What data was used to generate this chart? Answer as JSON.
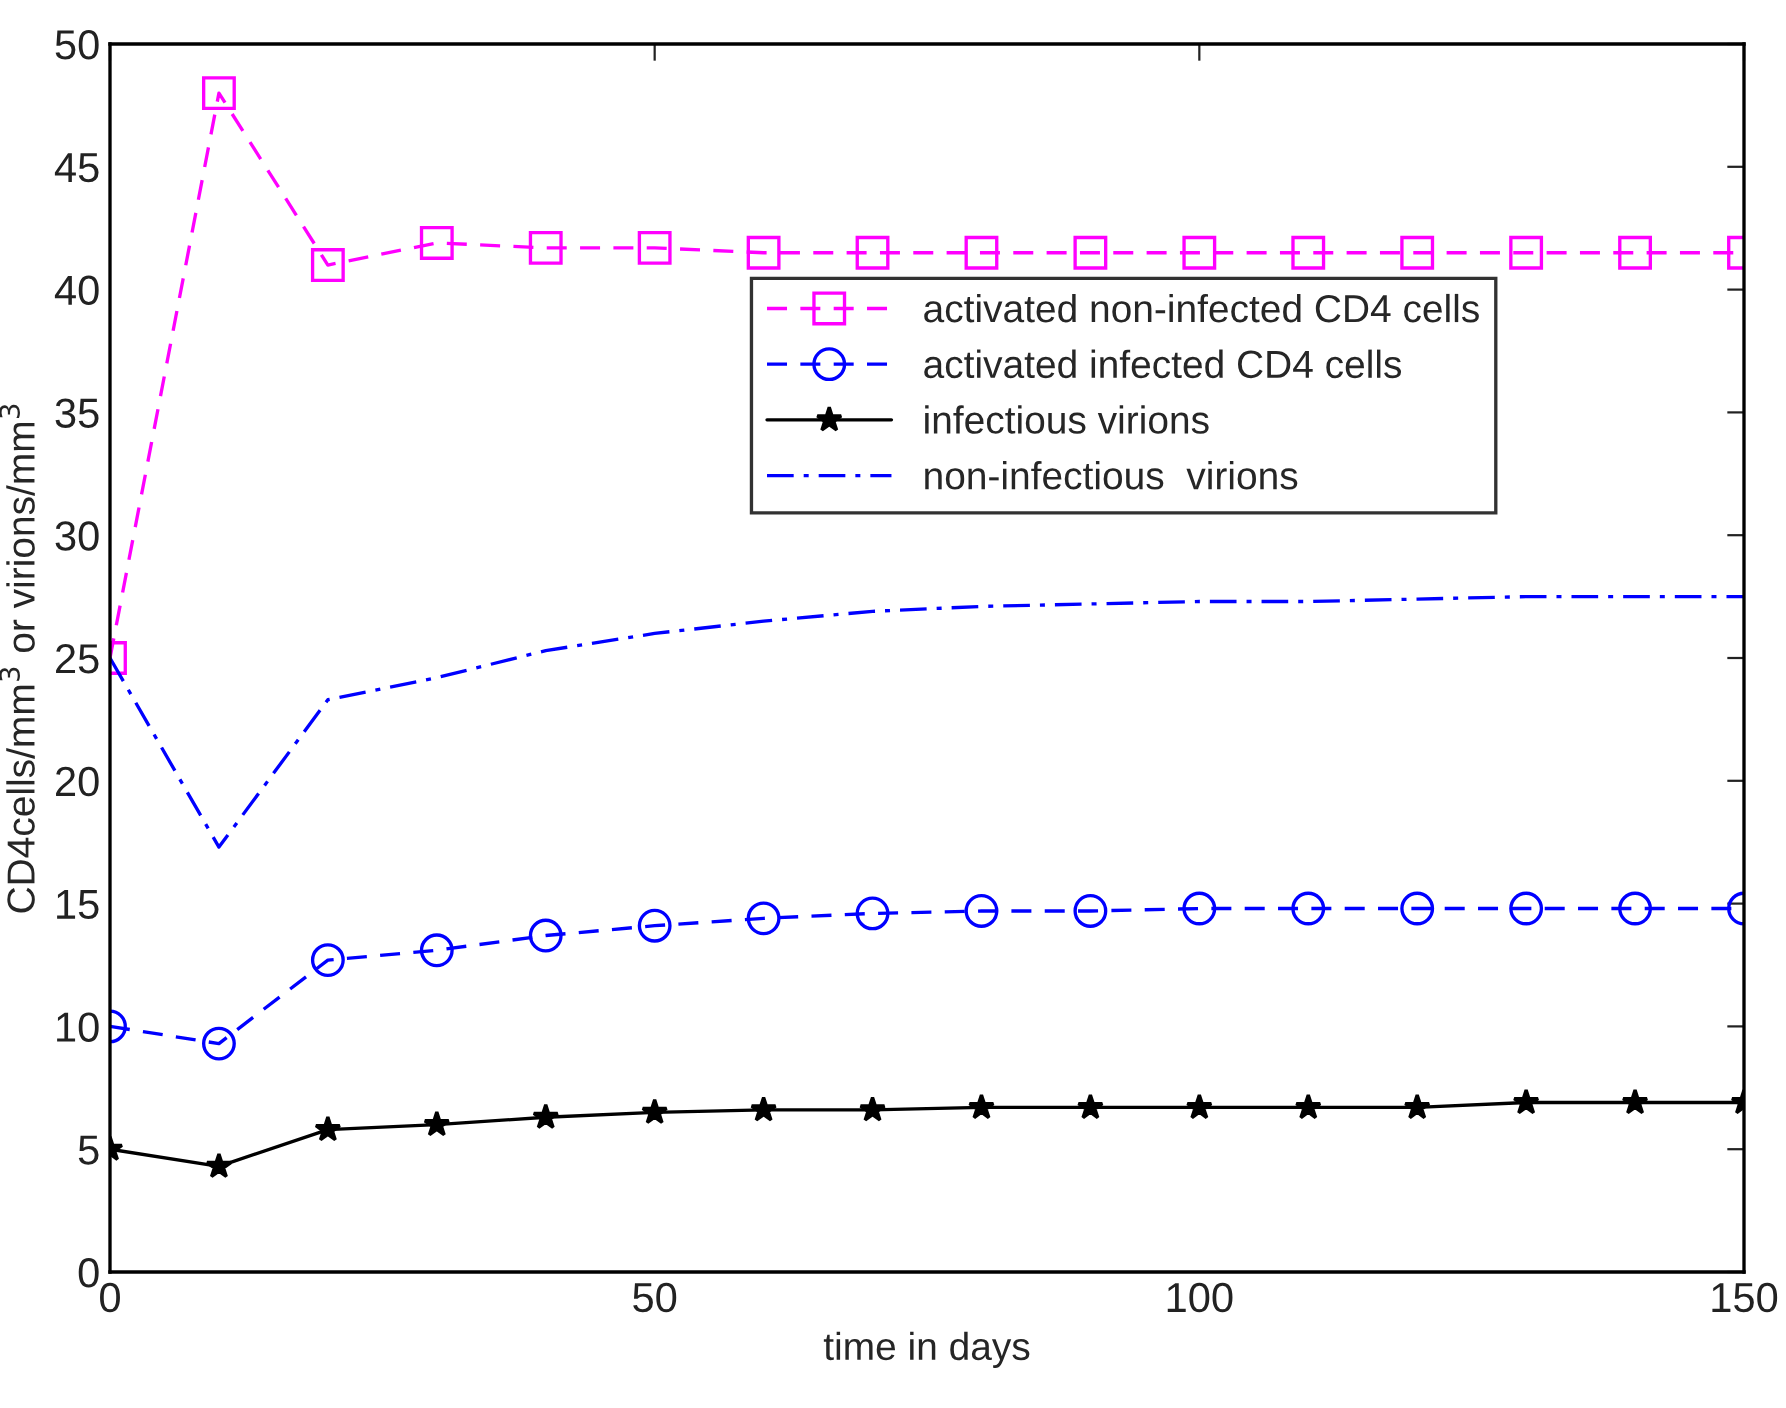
{
  "chart_data": {
    "type": "line",
    "xlabel": "time in days",
    "ylabel": "CD4cells/mm$^{3}$ or virions/mm$^{3}$",
    "x": [
      0,
      10,
      20,
      30,
      40,
      50,
      60,
      70,
      80,
      90,
      100,
      110,
      120,
      130,
      140,
      150
    ],
    "series": [
      {
        "name": "activated non-infected CD4 cells",
        "color": "#ff00ff",
        "marker": "square",
        "line_style": "dashed",
        "values": [
          25,
          48,
          41,
          41.9,
          41.7,
          41.7,
          41.5,
          41.5,
          41.5,
          41.5,
          41.5,
          41.5,
          41.5,
          41.5,
          41.5,
          41.5
        ]
      },
      {
        "name": "activated infected CD4 cells",
        "color": "#0000ff",
        "marker": "circle",
        "line_style": "dashed",
        "values": [
          10,
          9.3,
          12.7,
          13.1,
          13.7,
          14.1,
          14.4,
          14.6,
          14.7,
          14.7,
          14.8,
          14.8,
          14.8,
          14.8,
          14.8,
          14.8
        ]
      },
      {
        "name": "infectious virions",
        "color": "#000000",
        "marker": "star",
        "line_style": "solid",
        "values": [
          5,
          4.3,
          5.8,
          6.0,
          6.3,
          6.5,
          6.6,
          6.6,
          6.7,
          6.7,
          6.7,
          6.7,
          6.7,
          6.9,
          6.9,
          6.9
        ]
      },
      {
        "name": "non-infectious  virions",
        "color": "#0000ff",
        "marker": "none",
        "line_style": "dashdot",
        "values": [
          25,
          17.3,
          23.3,
          24.2,
          25.3,
          26.0,
          26.5,
          26.9,
          27.1,
          27.2,
          27.3,
          27.3,
          27.4,
          27.5,
          27.5,
          27.5
        ]
      }
    ],
    "xlim": [
      0,
      150
    ],
    "xticks": [
      0,
      50,
      100,
      150
    ],
    "ylim": [
      0,
      50
    ],
    "yticks": [
      0,
      5,
      10,
      15,
      20,
      25,
      30,
      35,
      40,
      45,
      50
    ],
    "grid": false,
    "legend": "top right"
  }
}
